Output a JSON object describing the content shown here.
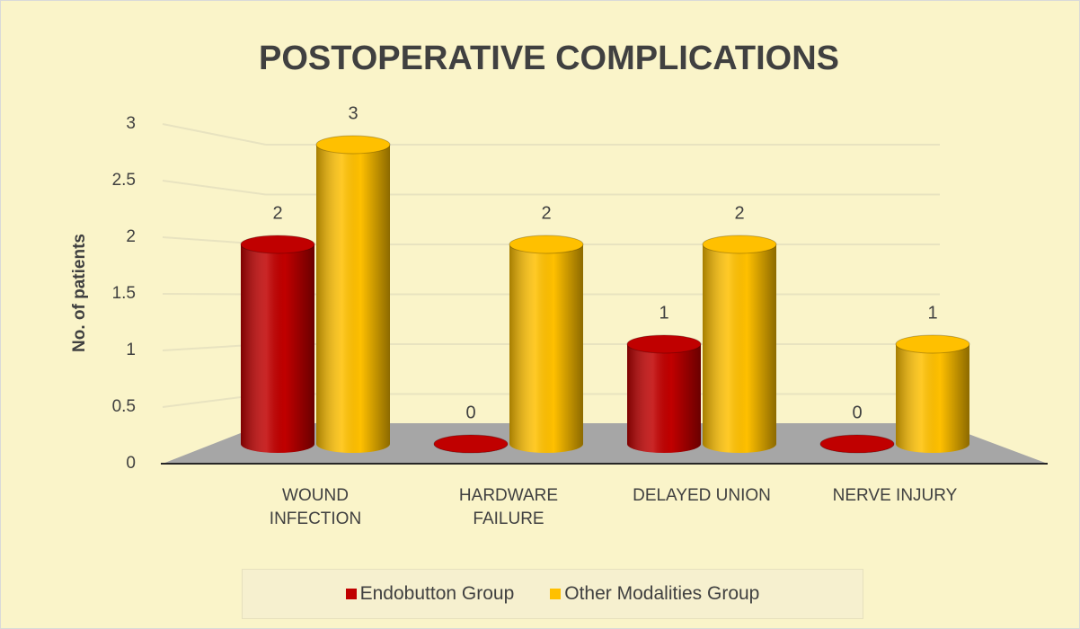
{
  "chart_data": {
    "type": "bar3d",
    "title": "POSTOPERATIVE COMPLICATIONS",
    "ylabel": "No. of patients",
    "categories": [
      "WOUND INFECTION",
      "HARDWARE FAILURE",
      "DELAYED UNION",
      "NERVE INJURY"
    ],
    "series": [
      {
        "name": "Endobutton Group",
        "color": "#c00000",
        "values": [
          2,
          0,
          1,
          0
        ]
      },
      {
        "name": "Other Modalities Group",
        "color": "#ffc000",
        "values": [
          3,
          2,
          2,
          1
        ]
      }
    ],
    "ylim": [
      0,
      3
    ],
    "yticks": [
      0,
      0.5,
      1,
      1.5,
      2,
      2.5,
      3
    ],
    "grid": true,
    "legend": "bottom"
  }
}
